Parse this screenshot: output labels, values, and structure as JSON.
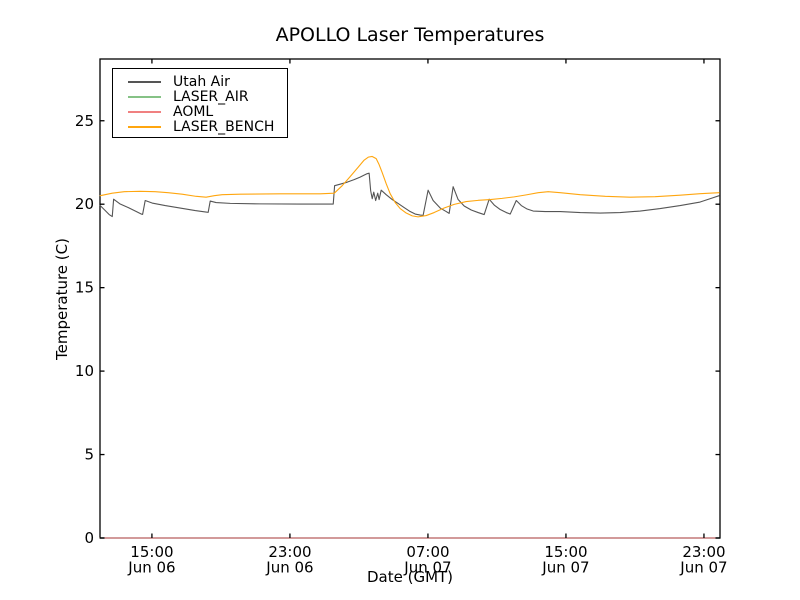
{
  "chart_data": {
    "type": "line",
    "title": "APOLLO Laser Temperatures",
    "xlabel": "Date (GMT)",
    "ylabel": "Temperature (C)",
    "x_axis": {
      "unit": "hours-from-Jun-06-00:00-GMT",
      "min": 11.99,
      "max": 47.93,
      "ticks": [
        {
          "hour": 15,
          "time": "15:00",
          "date": "Jun 06"
        },
        {
          "hour": 23,
          "time": "23:00",
          "date": "Jun 06"
        },
        {
          "hour": 31,
          "time": "07:00",
          "date": "Jun 07"
        },
        {
          "hour": 39,
          "time": "15:00",
          "date": "Jun 07"
        },
        {
          "hour": 47,
          "time": "23:00",
          "date": "Jun 07"
        }
      ]
    },
    "y_axis": {
      "min": 0,
      "max": 28.7,
      "ticks": [
        0,
        5,
        10,
        15,
        20,
        25
      ]
    },
    "legend": {
      "position": "upper-left"
    },
    "grid": false,
    "series": [
      {
        "name": "Utah Air",
        "color": "#555555",
        "points": [
          [
            12.0,
            19.92
          ],
          [
            12.29,
            19.62
          ],
          [
            12.52,
            19.38
          ],
          [
            12.7,
            19.26
          ],
          [
            12.78,
            20.3
          ],
          [
            13.16,
            20.01
          ],
          [
            13.62,
            19.8
          ],
          [
            14.09,
            19.56
          ],
          [
            14.38,
            19.41
          ],
          [
            14.46,
            19.39
          ],
          [
            14.61,
            20.22
          ],
          [
            15.01,
            20.07
          ],
          [
            15.77,
            19.92
          ],
          [
            16.64,
            19.77
          ],
          [
            17.51,
            19.62
          ],
          [
            18.14,
            19.53
          ],
          [
            18.26,
            19.51
          ],
          [
            18.38,
            20.19
          ],
          [
            18.72,
            20.1
          ],
          [
            19.54,
            20.05
          ],
          [
            21.28,
            20.02
          ],
          [
            23.59,
            20.01
          ],
          [
            25.51,
            20.01
          ],
          [
            25.59,
            21.11
          ],
          [
            25.91,
            21.2
          ],
          [
            26.32,
            21.32
          ],
          [
            26.72,
            21.47
          ],
          [
            27.07,
            21.62
          ],
          [
            27.3,
            21.74
          ],
          [
            27.48,
            21.83
          ],
          [
            27.59,
            21.86
          ],
          [
            27.68,
            20.81
          ],
          [
            27.77,
            20.33
          ],
          [
            27.86,
            20.72
          ],
          [
            27.97,
            20.22
          ],
          [
            28.09,
            20.66
          ],
          [
            28.17,
            20.28
          ],
          [
            28.29,
            20.84
          ],
          [
            28.58,
            20.57
          ],
          [
            28.93,
            20.28
          ],
          [
            29.28,
            20.04
          ],
          [
            29.62,
            19.8
          ],
          [
            29.97,
            19.56
          ],
          [
            30.26,
            19.41
          ],
          [
            30.55,
            19.35
          ],
          [
            30.72,
            19.33
          ],
          [
            31.01,
            20.84
          ],
          [
            31.3,
            20.22
          ],
          [
            31.71,
            19.77
          ],
          [
            32.06,
            19.56
          ],
          [
            32.23,
            19.45
          ],
          [
            32.46,
            21.05
          ],
          [
            32.75,
            20.28
          ],
          [
            33.1,
            19.89
          ],
          [
            33.51,
            19.65
          ],
          [
            33.91,
            19.5
          ],
          [
            34.26,
            19.38
          ],
          [
            34.55,
            20.3
          ],
          [
            34.84,
            19.95
          ],
          [
            35.19,
            19.68
          ],
          [
            35.54,
            19.5
          ],
          [
            35.77,
            19.41
          ],
          [
            36.12,
            20.22
          ],
          [
            36.41,
            19.92
          ],
          [
            36.75,
            19.71
          ],
          [
            37.1,
            19.59
          ],
          [
            37.8,
            19.56
          ],
          [
            38.67,
            19.56
          ],
          [
            39.83,
            19.5
          ],
          [
            40.99,
            19.47
          ],
          [
            42.14,
            19.5
          ],
          [
            43.3,
            19.59
          ],
          [
            44.46,
            19.74
          ],
          [
            45.62,
            19.92
          ],
          [
            46.78,
            20.13
          ],
          [
            47.48,
            20.37
          ],
          [
            47.88,
            20.51
          ]
        ]
      },
      {
        "name": "LASER_AIR",
        "color": "#86c286",
        "points": [
          [
            12.0,
            0.0
          ],
          [
            47.9,
            0.0
          ]
        ]
      },
      {
        "name": "AOML",
        "color": "#f08080",
        "points": [
          [
            12.0,
            0.0
          ],
          [
            47.9,
            0.0
          ]
        ]
      },
      {
        "name": "LASER_BENCH",
        "color": "#ffa60f",
        "points": [
          [
            12.0,
            20.51
          ],
          [
            12.7,
            20.66
          ],
          [
            13.39,
            20.75
          ],
          [
            14.32,
            20.77
          ],
          [
            15.19,
            20.75
          ],
          [
            15.94,
            20.69
          ],
          [
            16.75,
            20.6
          ],
          [
            17.57,
            20.47
          ],
          [
            18.14,
            20.42
          ],
          [
            18.61,
            20.51
          ],
          [
            19.07,
            20.57
          ],
          [
            20.12,
            20.6
          ],
          [
            22.43,
            20.62
          ],
          [
            24.75,
            20.62
          ],
          [
            25.57,
            20.66
          ],
          [
            26.03,
            21.11
          ],
          [
            26.49,
            21.65
          ],
          [
            26.96,
            22.22
          ],
          [
            27.3,
            22.64
          ],
          [
            27.54,
            22.82
          ],
          [
            27.77,
            22.86
          ],
          [
            28.0,
            22.73
          ],
          [
            28.17,
            22.37
          ],
          [
            28.35,
            21.89
          ],
          [
            28.58,
            21.23
          ],
          [
            28.81,
            20.63
          ],
          [
            29.1,
            20.1
          ],
          [
            29.39,
            19.74
          ],
          [
            29.74,
            19.47
          ],
          [
            30.09,
            19.3
          ],
          [
            30.43,
            19.24
          ],
          [
            30.9,
            19.32
          ],
          [
            31.36,
            19.5
          ],
          [
            31.94,
            19.77
          ],
          [
            32.52,
            19.99
          ],
          [
            33.22,
            20.16
          ],
          [
            33.91,
            20.23
          ],
          [
            34.61,
            20.28
          ],
          [
            35.3,
            20.35
          ],
          [
            36.0,
            20.44
          ],
          [
            36.7,
            20.56
          ],
          [
            37.39,
            20.69
          ],
          [
            37.97,
            20.75
          ],
          [
            38.67,
            20.69
          ],
          [
            39.83,
            20.57
          ],
          [
            41.28,
            20.47
          ],
          [
            42.72,
            20.42
          ],
          [
            44.17,
            20.45
          ],
          [
            45.62,
            20.54
          ],
          [
            46.78,
            20.63
          ],
          [
            47.88,
            20.69
          ]
        ]
      }
    ]
  }
}
